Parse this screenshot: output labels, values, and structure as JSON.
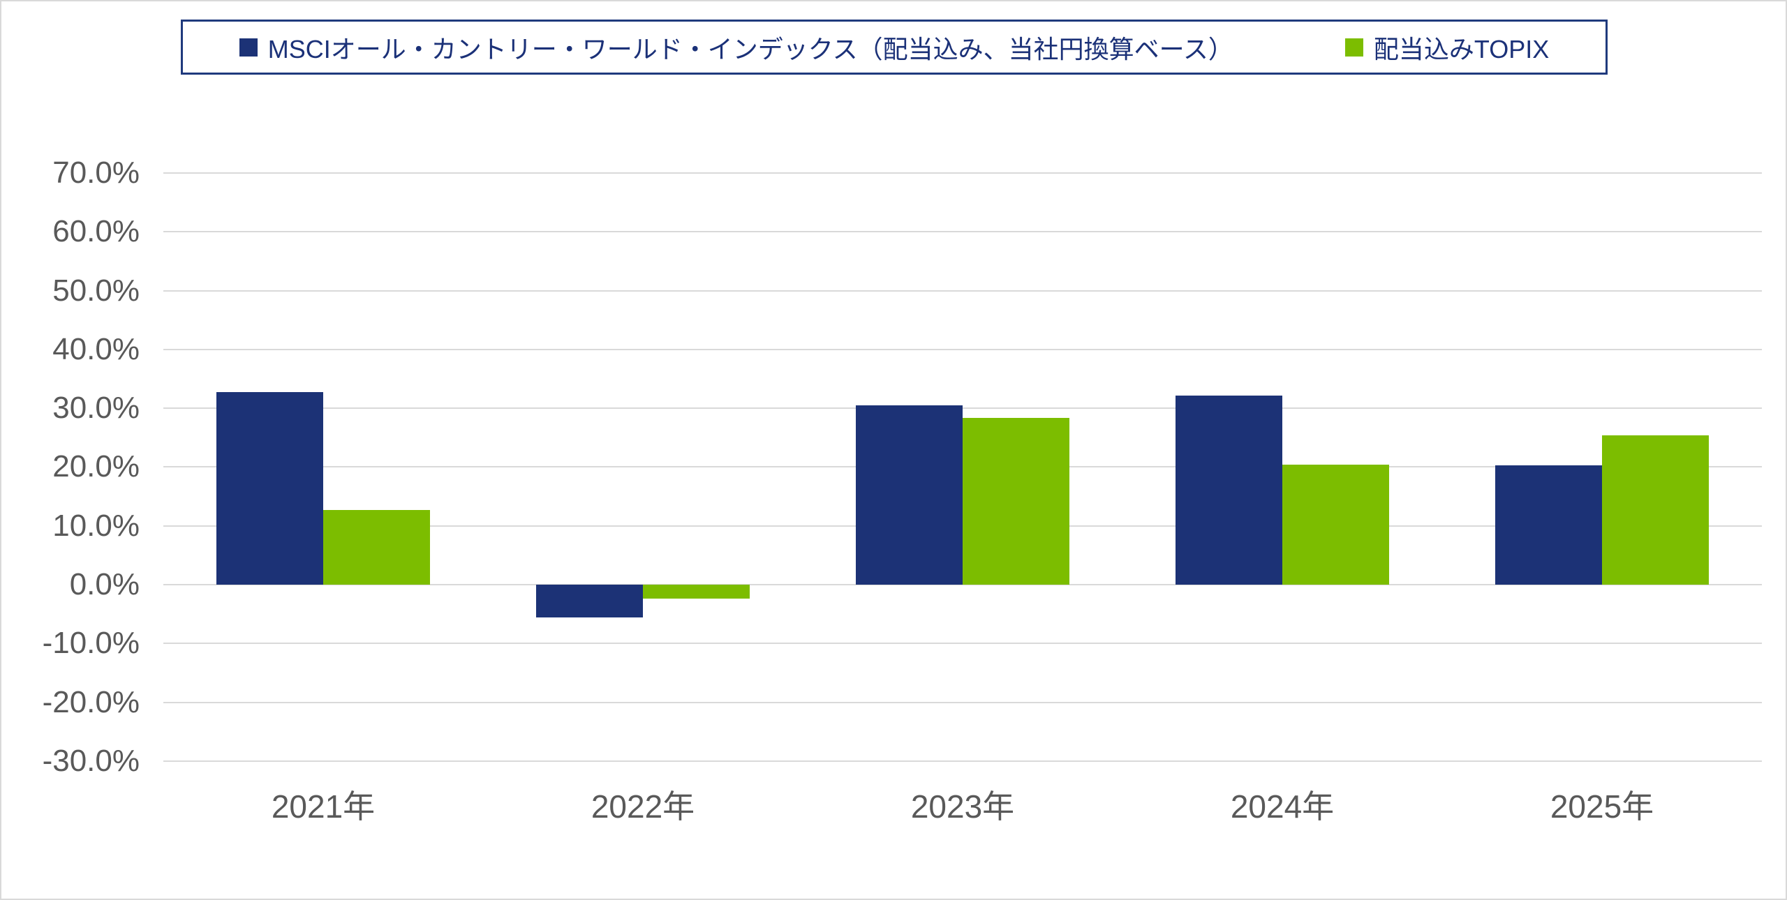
{
  "chart_data": {
    "type": "bar",
    "title": "",
    "xlabel": "",
    "ylabel": "",
    "categories": [
      "2021年",
      "2022年",
      "2023年",
      "2024年",
      "2025年"
    ],
    "series": [
      {
        "name": "MSCIオール・カントリー・ワールド・インデックス（配当込み、当社円換算ベース）",
        "color": "#1c3276",
        "values": [
          32.7,
          -5.6,
          30.5,
          32.1,
          20.3
        ]
      },
      {
        "name": "配当込みTOPIX",
        "color": "#7cbd00",
        "values": [
          12.7,
          -2.4,
          28.3,
          20.4,
          25.4
        ]
      }
    ],
    "y_ticks": [
      70,
      60,
      50,
      40,
      30,
      20,
      10,
      0,
      -10,
      -20,
      -30
    ],
    "y_tick_suffix": "%",
    "ylim": [
      -30,
      70
    ],
    "grid": true,
    "gridline_color": "#d9d9d9",
    "legend_position": "top",
    "legend_border_color": "#1f3a7d",
    "axis_label_color": "#595959"
  }
}
